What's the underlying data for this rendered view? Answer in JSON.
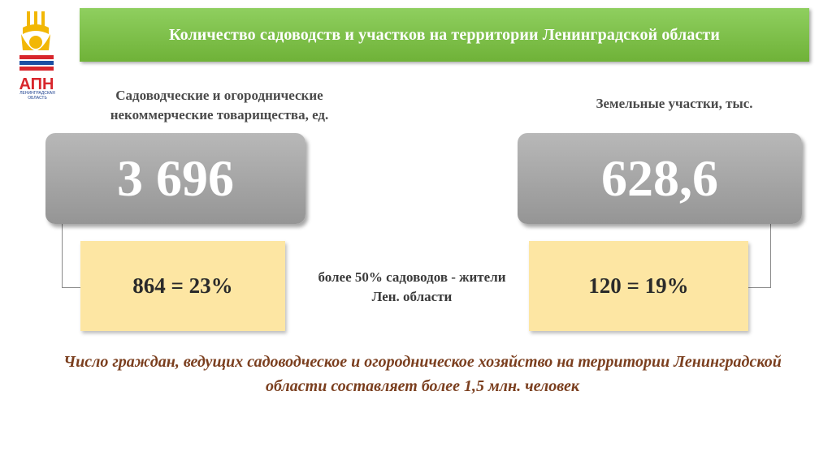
{
  "logo": {
    "text": "АПН",
    "caption": "ЛЕНИНГРАДСКАЯ ОБЛАСТЬ"
  },
  "title": "Количество садоводств и участков на территории Ленинградской области",
  "left": {
    "caption": "Садоводческие и огороднические некоммерческие товарищества, ед.",
    "value": "3 696",
    "sub": "864 = 23%"
  },
  "right": {
    "caption": "Земельные участки, тыс.",
    "value": "628,6",
    "sub": "120 = 19%"
  },
  "middle_note": "более 50% садоводов - жители Лен. области",
  "footer": "Число граждан, ведущих садоводческое и огородническое хозяйство на территории Ленинградской области составляет более 1,5 млн. человек",
  "colors": {
    "title_bg": "#7dbf45",
    "value_box": "#a6a6a6",
    "sub_box": "#fde6a3",
    "footer_text": "#7b3f1f"
  }
}
